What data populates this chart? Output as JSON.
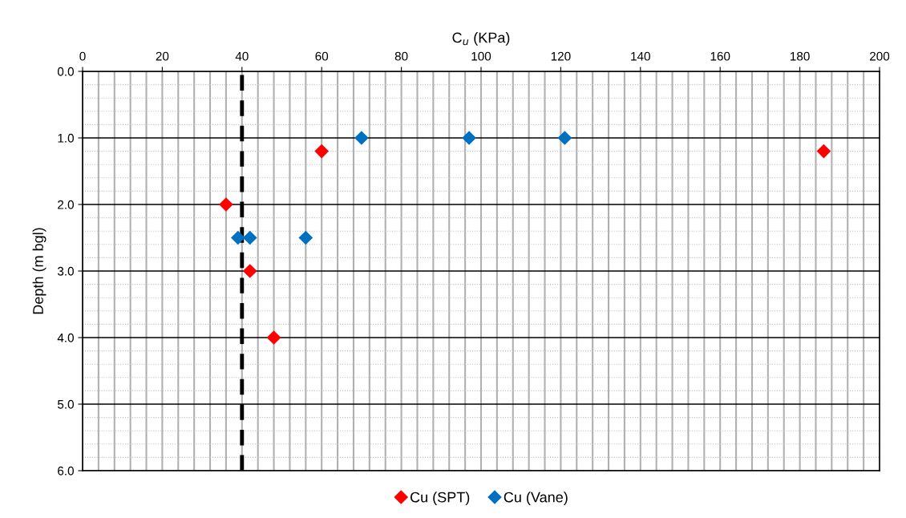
{
  "chart_data": {
    "type": "scatter",
    "xlabel": "C$_{u}$ (KPa)",
    "ylabel": "Depth (m bgl)",
    "series": [
      {
        "name": "Cu (SPT)",
        "color": "#ff0000",
        "x": [
          60,
          186,
          36,
          42,
          48
        ],
        "values": [
          1.2,
          1.2,
          2.0,
          3.0,
          4.0
        ]
      },
      {
        "name": "Cu (Vane)",
        "color": "#0070c0",
        "x": [
          70,
          97,
          121,
          39,
          42,
          56
        ],
        "values": [
          1.0,
          1.0,
          1.0,
          2.5,
          2.5,
          2.5
        ]
      }
    ],
    "ref_lines": [
      {
        "axis": "x",
        "value": 40,
        "color": "#000000",
        "line_style": "dashed"
      }
    ],
    "xlim": [
      0,
      200
    ],
    "xticks": [
      0,
      20,
      40,
      60,
      80,
      100,
      120,
      140,
      160,
      180,
      200
    ],
    "ylim": [
      6.0,
      0.0
    ],
    "yticks": [
      {
        "value": 0,
        "label": "0.0"
      },
      {
        "value": 1,
        "label": "1.0"
      },
      {
        "value": 2,
        "label": "2.0"
      },
      {
        "value": 3,
        "label": "3.0"
      },
      {
        "value": 4,
        "label": "4.0"
      },
      {
        "value": 5,
        "label": "5.0"
      },
      {
        "value": 6,
        "label": "6.0"
      }
    ],
    "grid": true,
    "legend": "bottom",
    "marker": "diamond"
  }
}
